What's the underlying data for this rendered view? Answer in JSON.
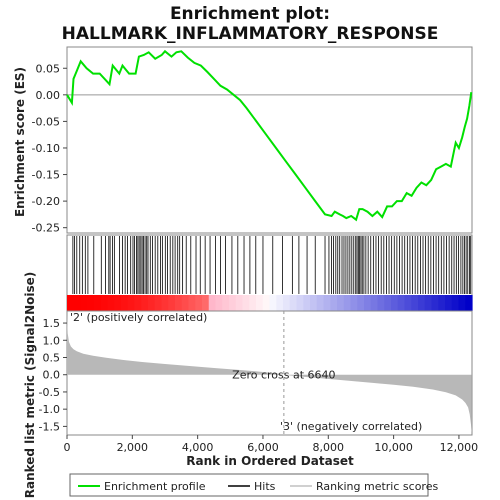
{
  "chart_data": {
    "type": "line",
    "title_line1": "Enrichment plot:",
    "title_line2": "HALLMARK_INFLAMMATORY_RESPONSE",
    "es_panel": {
      "ylabel": "Enrichment score (ES)",
      "ylim": [
        -0.26,
        0.09
      ],
      "yticks": [
        0.05,
        0.0,
        -0.05,
        -0.1,
        -0.15,
        -0.2,
        -0.25
      ],
      "ytick_labels": [
        "0.05",
        "0.00",
        "-0.05",
        "-0.10",
        "-0.15",
        "-0.20",
        "-0.25"
      ],
      "series": [
        {
          "name": "Enrichment profile",
          "color": "#00e000",
          "x": [
            0,
            150,
            200,
            300,
            420,
            600,
            800,
            1000,
            1300,
            1400,
            1600,
            1700,
            1900,
            2100,
            2200,
            2350,
            2500,
            2700,
            2900,
            3000,
            3200,
            3350,
            3500,
            3700,
            3900,
            4100,
            4300,
            4500,
            4700,
            4900,
            5100,
            5300,
            5500,
            5800,
            6100,
            6400,
            6700,
            7000,
            7300,
            7600,
            7900,
            8100,
            8200,
            8350,
            8450,
            8550,
            8700,
            8850,
            8950,
            9050,
            9200,
            9350,
            9500,
            9650,
            9800,
            9950,
            10100,
            10250,
            10400,
            10550,
            10700,
            10850,
            11000,
            11150,
            11300,
            11450,
            11600,
            11750,
            11900,
            12000,
            12100,
            12180,
            12250,
            12320,
            12380
          ],
          "y": [
            0.0,
            -0.015,
            0.03,
            0.045,
            0.063,
            0.05,
            0.04,
            0.04,
            0.02,
            0.055,
            0.04,
            0.055,
            0.04,
            0.04,
            0.072,
            0.075,
            0.08,
            0.068,
            0.075,
            0.082,
            0.072,
            0.08,
            0.082,
            0.07,
            0.06,
            0.055,
            0.043,
            0.03,
            0.017,
            0.01,
            0.0,
            -0.01,
            -0.025,
            -0.05,
            -0.075,
            -0.1,
            -0.125,
            -0.15,
            -0.175,
            -0.2,
            -0.225,
            -0.228,
            -0.22,
            -0.225,
            -0.228,
            -0.232,
            -0.228,
            -0.235,
            -0.215,
            -0.215,
            -0.22,
            -0.228,
            -0.22,
            -0.23,
            -0.21,
            -0.21,
            -0.2,
            -0.2,
            -0.185,
            -0.19,
            -0.175,
            -0.165,
            -0.17,
            -0.16,
            -0.14,
            -0.135,
            -0.13,
            -0.135,
            -0.09,
            -0.1,
            -0.08,
            -0.06,
            -0.045,
            -0.02,
            0.005
          ]
        }
      ]
    },
    "hits_panel": {
      "hit_positions": [
        180,
        230,
        300,
        390,
        470,
        560,
        640,
        820,
        1050,
        1180,
        1280,
        1320,
        1390,
        1450,
        1610,
        1700,
        1780,
        1850,
        1950,
        2020,
        2070,
        2130,
        2170,
        2210,
        2260,
        2300,
        2340,
        2390,
        2440,
        2480,
        2550,
        2620,
        2700,
        2780,
        2860,
        2920,
        3010,
        3080,
        3160,
        3240,
        3310,
        3390,
        3450,
        3540,
        3650,
        3790,
        3950,
        4080,
        4230,
        4380,
        4550,
        4700,
        4850,
        5050,
        5230,
        5420,
        5600,
        5780,
        6000,
        6300,
        6600,
        6900,
        7100,
        7350,
        7600,
        7900,
        8020,
        8100,
        8160,
        8230,
        8290,
        8350,
        8420,
        8480,
        8540,
        8600,
        8660,
        8720,
        8780,
        8840,
        8880,
        8920,
        8960,
        9000,
        9040,
        9090,
        9150,
        9220,
        9300,
        9380,
        9460,
        9540,
        9620,
        9700,
        9780,
        9860,
        9940,
        10020,
        10100,
        10180,
        10260,
        10340,
        10420,
        10500,
        10580,
        10660,
        10740,
        10820,
        10900,
        10980,
        11060,
        11140,
        11220,
        11300,
        11380,
        11460,
        11540,
        11620,
        11700,
        11780,
        11850,
        11920,
        11990,
        12060,
        12120,
        12170,
        12220,
        12270,
        12320,
        12360
      ]
    },
    "metric_panel": {
      "ylabel": "Ranked list metric (Signal2Noise)",
      "xlabel": "Rank in Ordered Dataset",
      "ylim": [
        -1.75,
        1.85
      ],
      "yticks": [
        1.5,
        1.0,
        0.5,
        0.0,
        -0.5,
        -1.0,
        -1.5
      ],
      "ytick_labels": [
        "1.5",
        "1.0",
        "0.5",
        "0.0",
        "-0.5",
        "-1.0",
        "-1.5"
      ],
      "xlim": [
        0,
        12400
      ],
      "xticks": [
        0,
        2000,
        4000,
        6000,
        8000,
        10000,
        12000
      ],
      "xtick_labels": [
        "0",
        "2,000",
        "4,000",
        "6,000",
        "8,000",
        "10,000",
        "12,000"
      ],
      "x": [
        0,
        20,
        60,
        120,
        200,
        300,
        500,
        800,
        1200,
        1700,
        2300,
        3000,
        3800,
        4600,
        5400,
        6000,
        6400,
        6640,
        7000,
        7600,
        8200,
        8800,
        9400,
        10000,
        10600,
        11200,
        11600,
        11900,
        12100,
        12200,
        12280,
        12330,
        12370,
        12390
      ],
      "y": [
        1.75,
        1.2,
        0.95,
        0.82,
        0.74,
        0.68,
        0.61,
        0.55,
        0.49,
        0.43,
        0.37,
        0.31,
        0.25,
        0.19,
        0.13,
        0.08,
        0.04,
        0.0,
        -0.04,
        -0.09,
        -0.14,
        -0.19,
        -0.24,
        -0.29,
        -0.35,
        -0.43,
        -0.51,
        -0.6,
        -0.72,
        -0.82,
        -0.95,
        -1.15,
        -1.45,
        -1.68
      ],
      "zero_cross_rank": 6640,
      "zero_cross_label": "Zero cross at 6640",
      "pos_label": "'2' (positively correlated)",
      "neg_label": "'3' (negatively correlated)"
    },
    "legend": {
      "entries": [
        "Enrichment profile",
        "Hits",
        "Ranking metric scores"
      ],
      "colors": [
        "#00e000",
        "#000000",
        "#c0c0c0"
      ]
    },
    "colors": {
      "es_line": "#00e000",
      "metric_fill": "#b8b8b8",
      "pos_text": "#ff0000",
      "neg_text": "#0000ff"
    }
  }
}
